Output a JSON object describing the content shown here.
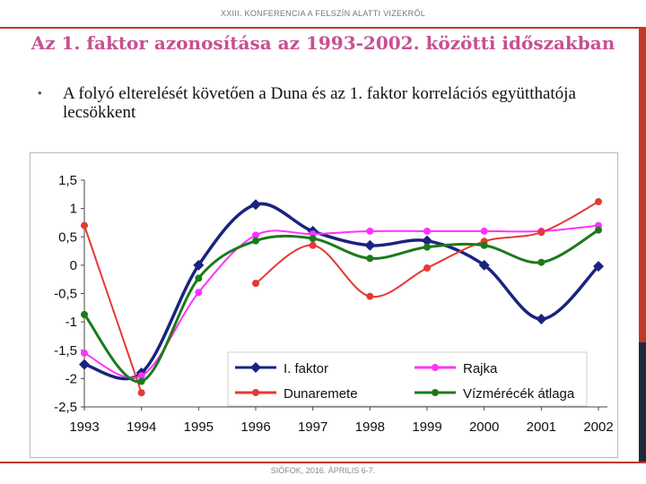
{
  "header": {
    "conference": "XXIII. KONFERENCIA A FELSZÍN ALATTI VIZEKRŐL"
  },
  "slide": {
    "title": "Az 1. faktor azonosítása az 1993-2002. közötti időszakban",
    "bullet": "A folyó elterelését követően a Duna és az 1. faktor korrelációs együtthatója lecsökkent"
  },
  "footer": {
    "text": "SIÓFOK, 2016. ÁPRILIS 6-7."
  },
  "colors": {
    "accent_red": "#c0392b",
    "title_pink": "#c94f92",
    "dark_navy": "#1e2a3c",
    "series_faktor": "#1a237e",
    "series_rajka": "#ff33ff",
    "series_dunaremete": "#e53935",
    "series_vizmerecek": "#1b7a1b"
  },
  "chart_data": {
    "type": "line",
    "title": "",
    "xlabel": "",
    "ylabel": "",
    "x": [
      "1993",
      "1994",
      "1995",
      "1996",
      "1997",
      "1998",
      "1999",
      "2000",
      "2001",
      "2002"
    ],
    "ylim": [
      -2.5,
      1.5
    ],
    "yticks": [
      "1,5",
      "1",
      "0,5",
      "0",
      "-0,5",
      "-1",
      "-1,5",
      "-2",
      "-2,5"
    ],
    "legend_position": "bottom-right",
    "series": [
      {
        "name": "I. faktor",
        "color": "#1a237e",
        "marker": "diamond",
        "values": [
          -1.75,
          -1.9,
          0.0,
          1.07,
          0.6,
          0.35,
          0.43,
          0.0,
          -0.95,
          -0.02
        ]
      },
      {
        "name": "Rajka",
        "color": "#ff33ff",
        "marker": "circle",
        "values": [
          -1.55,
          -1.95,
          -0.48,
          0.53,
          0.55,
          0.6,
          0.6,
          0.6,
          0.6,
          0.7
        ]
      },
      {
        "name": "Dunaremete",
        "color": "#e53935",
        "marker": "circle",
        "values": [
          0.7,
          -2.25,
          null,
          -0.32,
          0.35,
          -0.55,
          -0.05,
          0.42,
          0.58,
          1.12
        ]
      },
      {
        "name": "Vízmérécék átlaga",
        "color": "#1b7a1b",
        "marker": "circle",
        "values": [
          -0.87,
          -2.05,
          -0.23,
          0.43,
          0.47,
          0.12,
          0.32,
          0.35,
          0.05,
          0.62
        ]
      }
    ]
  }
}
